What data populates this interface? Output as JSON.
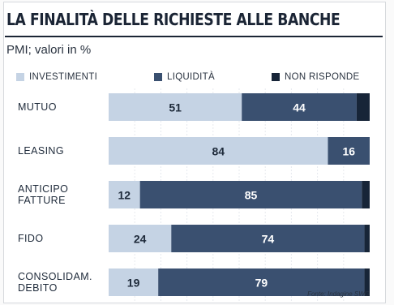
{
  "header": {
    "title": "LA FINALITÀ DELLE RICHIESTE ALLE BANCHE",
    "subtitle": "PMI; valori in %"
  },
  "source": "Fonte: Indagine SWG",
  "chart_data": {
    "type": "bar",
    "orientation": "horizontal",
    "stacked": true,
    "title": "LA FINALITÀ DELLE RICHIESTE ALLE BANCHE",
    "subtitle": "PMI; valori in %",
    "categories": [
      "MUTUO",
      "LEASING",
      "ANTICIPO\nFATTURE",
      "FIDO",
      "CONSOLIDAM.\nDEBITO"
    ],
    "series": [
      {
        "name": "INVESTIMENTI",
        "color": "#c5d3e4",
        "values": [
          51,
          84,
          12,
          24,
          19
        ]
      },
      {
        "name": "LIQUIDITÀ",
        "color": "#3a5070",
        "values": [
          44,
          16,
          85,
          74,
          79
        ]
      },
      {
        "name": "NON RISPONDE",
        "color": "#172538",
        "values": [
          5,
          0,
          3,
          2,
          2
        ]
      }
    ],
    "labeled_series": [
      "INVESTIMENTI",
      "LIQUIDITÀ"
    ],
    "xlim": [
      0,
      100
    ],
    "grid": true,
    "legend": "top"
  }
}
